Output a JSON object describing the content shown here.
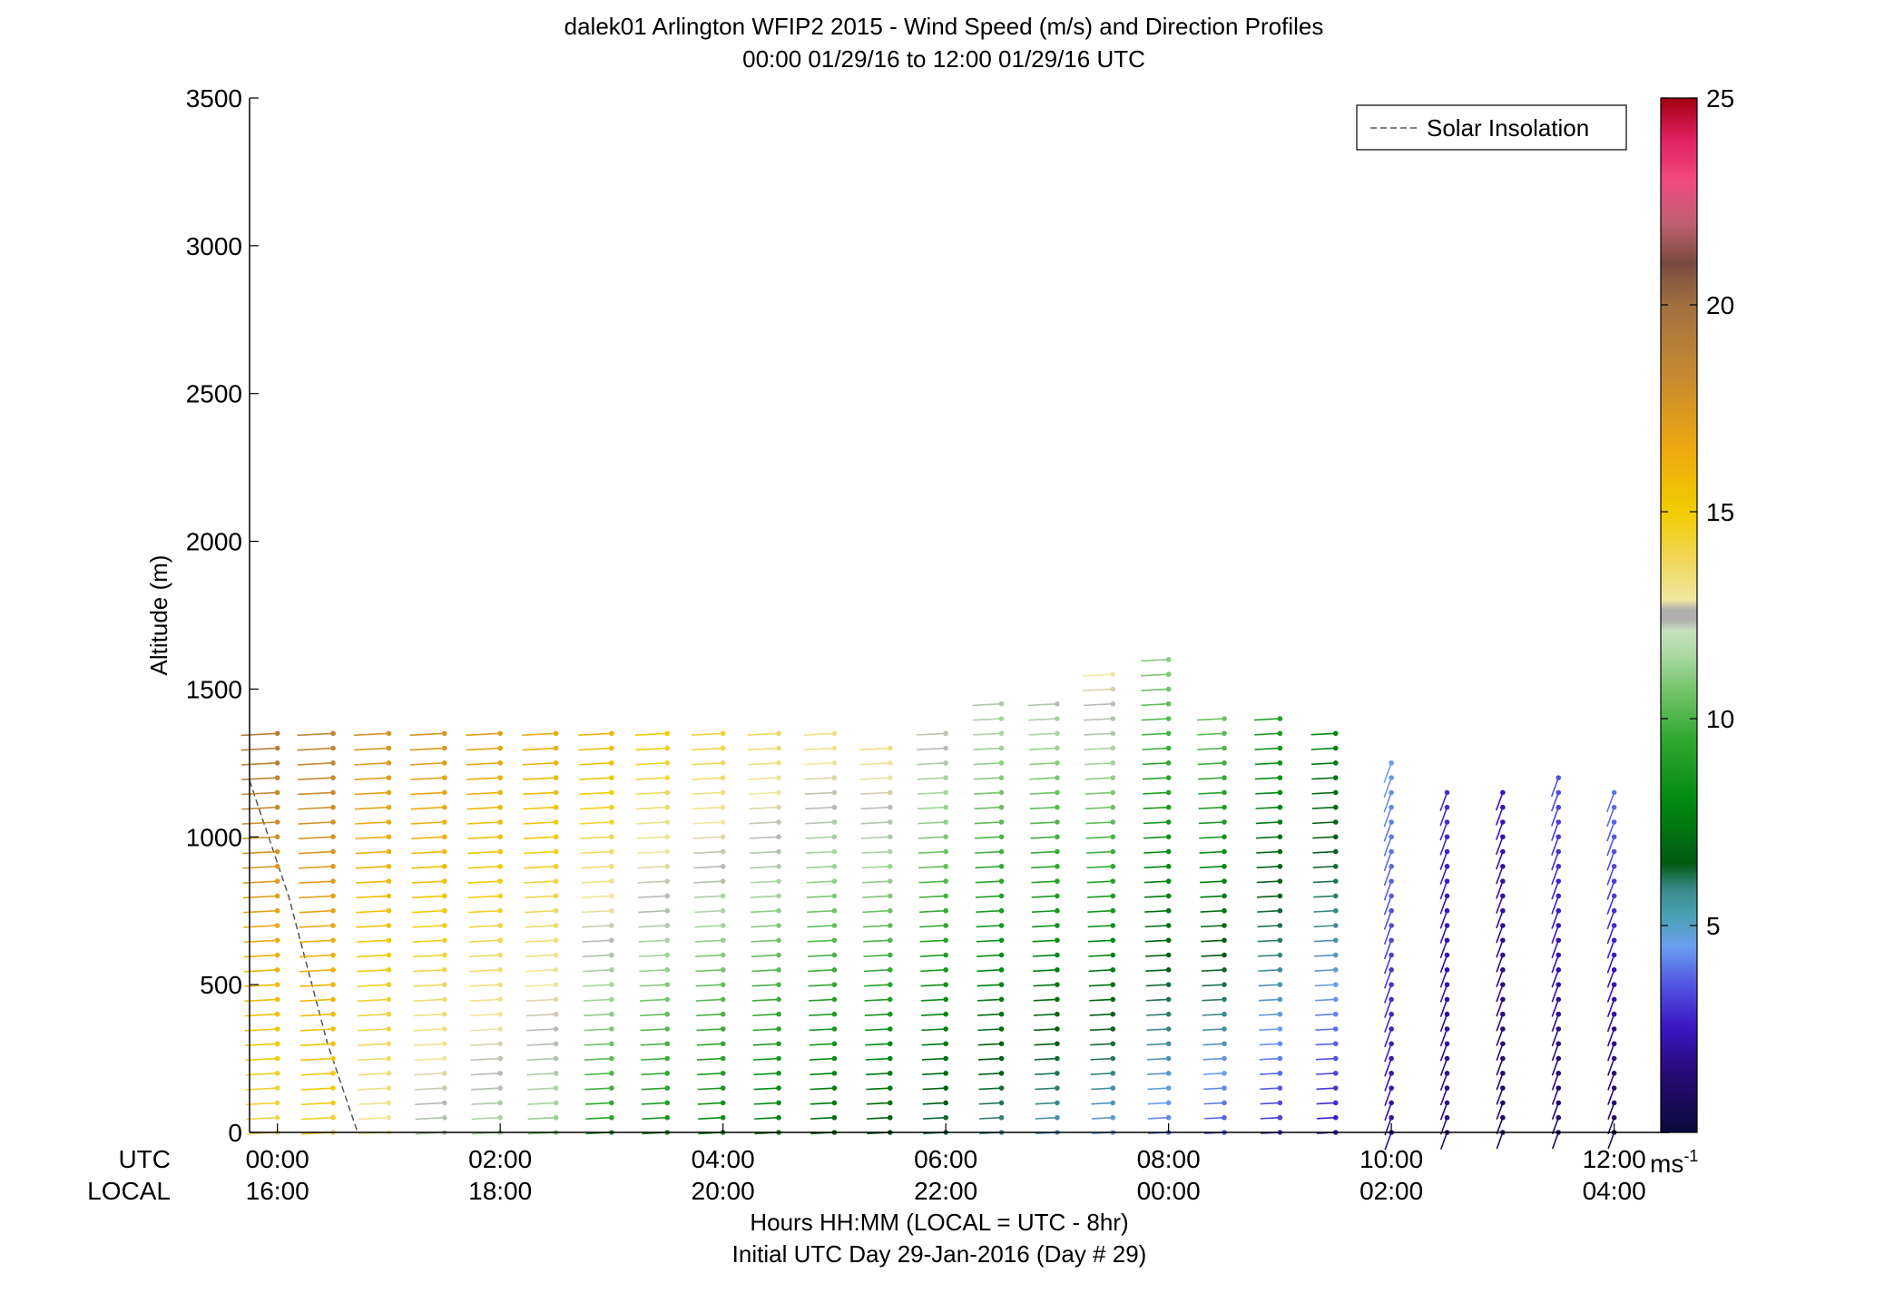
{
  "chart_data": {
    "type": "wind-barb-profile",
    "title": "dalek01 Arlington WFIP2 2015 - Wind Speed (m/s) and Direction Profiles",
    "subtitle": "00:00 01/29/16 to 12:00 01/29/16  UTC",
    "ylabel": "Altitude (m)",
    "xlabel": "Hours HH:MM  (LOCAL = UTC - 8hr)",
    "xlabel2": "Initial UTC Day 29-Jan-2016 (Day # 29)",
    "ylim": [
      0,
      3500
    ],
    "xlim_hours": [
      -0.25,
      12.5
    ],
    "yticks": [
      0,
      500,
      1000,
      1500,
      2000,
      2500,
      3000,
      3500
    ],
    "yticklabels": [
      "0",
      "500",
      "1000",
      "1500",
      "2000",
      "2500",
      "3000",
      "3500"
    ],
    "xticks_hours": [
      0,
      2,
      4,
      6,
      8,
      10,
      12
    ],
    "utc_row_label": "UTC",
    "local_row_label": "LOCAL",
    "utc_ticklabels": [
      "00:00",
      "02:00",
      "04:00",
      "06:00",
      "08:00",
      "10:00",
      "12:00"
    ],
    "local_ticklabels": [
      "16:00",
      "18:00",
      "20:00",
      "22:00",
      "00:00",
      "02:00",
      "04:00"
    ],
    "legend": {
      "entries": [
        "Solar Insolation"
      ],
      "location": "top-right",
      "line_style": "dashed"
    },
    "colorbar": {
      "range": [
        0,
        25
      ],
      "ticks": [
        5,
        10,
        15,
        20,
        25
      ],
      "ticklabels": [
        "5",
        "10",
        "15",
        "20",
        "25"
      ],
      "unit_label": "ms",
      "unit_exponent": "-1"
    },
    "solar_insolation_line": [
      {
        "hour": -0.25,
        "alt": 1190
      },
      {
        "hour": 0.1,
        "alt": 800
      },
      {
        "hour": 0.45,
        "alt": 300
      },
      {
        "hour": 0.72,
        "alt": 0
      }
    ],
    "profiles": [
      {
        "hour": 0.0,
        "levels": [
          [
            0,
            200,
            14.0
          ],
          [
            1350,
            1350,
            19.0
          ]
        ]
      },
      {
        "hour": 0.5,
        "levels": [
          [
            0,
            250,
            14.5
          ],
          [
            1350,
            1350,
            18.5
          ]
        ]
      },
      {
        "hour": 1.0,
        "levels": [
          [
            0,
            150,
            13.0
          ],
          [
            1350,
            1350,
            17.5
          ]
        ]
      },
      {
        "hour": 1.5,
        "levels": [
          [
            0,
            100,
            12.0
          ],
          [
            1350,
            1350,
            17.5
          ]
        ]
      },
      {
        "hour": 2.0,
        "levels": [
          [
            0,
            50,
            11.5
          ],
          [
            1350,
            1350,
            17.0
          ]
        ]
      },
      {
        "hour": 2.5,
        "levels": [
          [
            0,
            0,
            11.0
          ],
          [
            1350,
            1350,
            16.5
          ]
        ]
      },
      {
        "hour": 3.0,
        "levels": [
          [
            0,
            0,
            9.0
          ],
          [
            1350,
            1350,
            16.0
          ]
        ]
      },
      {
        "hour": 3.5,
        "levels": [
          [
            0,
            0,
            8.5
          ],
          [
            1350,
            1350,
            15.0
          ]
        ]
      },
      {
        "hour": 4.0,
        "levels": [
          [
            0,
            0,
            8.0
          ],
          [
            1350,
            1350,
            14.5
          ]
        ]
      },
      {
        "hour": 4.5,
        "levels": [
          [
            0,
            0,
            7.5
          ],
          [
            1350,
            1350,
            14.0
          ]
        ]
      },
      {
        "hour": 5.0,
        "levels": [
          [
            0,
            0,
            7.0
          ],
          [
            1350,
            1350,
            13.5
          ]
        ]
      },
      {
        "hour": 5.5,
        "levels": [
          [
            0,
            0,
            6.5
          ],
          [
            1300,
            1300,
            13.5
          ]
        ]
      },
      {
        "hour": 6.0,
        "levels": [
          [
            0,
            0,
            6.0
          ],
          [
            1350,
            1350,
            12.5
          ]
        ]
      },
      {
        "hour": 6.5,
        "levels": [
          [
            0,
            0,
            5.5
          ],
          [
            1450,
            1450,
            12.0
          ]
        ]
      },
      {
        "hour": 7.0,
        "levels": [
          [
            0,
            0,
            5.0
          ],
          [
            1450,
            1450,
            12.0
          ]
        ]
      },
      {
        "hour": 7.5,
        "levels": [
          [
            0,
            0,
            4.5
          ],
          [
            1550,
            1550,
            13.0
          ]
        ]
      },
      {
        "hour": 8.0,
        "levels": [
          [
            0,
            0,
            4.0
          ],
          [
            1600,
            1600,
            11.0
          ]
        ]
      },
      {
        "hour": 8.5,
        "levels": [
          [
            0,
            0,
            3.5
          ],
          [
            1400,
            1400,
            10.5
          ]
        ]
      },
      {
        "hour": 9.0,
        "levels": [
          [
            0,
            0,
            3.0
          ],
          [
            1400,
            1400,
            9.0
          ]
        ]
      },
      {
        "hour": 9.5,
        "levels": [
          [
            0,
            0,
            2.5
          ],
          [
            1350,
            1350,
            8.0
          ]
        ]
      },
      {
        "hour": 10.0,
        "levels": [
          [
            0,
            0,
            2.0
          ],
          [
            1250,
            1250,
            4.5
          ]
        ]
      },
      {
        "hour": 10.5,
        "levels": [
          [
            0,
            0,
            1.5
          ],
          [
            1150,
            1150,
            3.0
          ]
        ]
      },
      {
        "hour": 11.0,
        "levels": [
          [
            0,
            0,
            1.0
          ],
          [
            1150,
            1150,
            2.5
          ]
        ]
      },
      {
        "hour": 11.5,
        "levels": [
          [
            0,
            0,
            1.0
          ],
          [
            1200,
            1200,
            3.5
          ]
        ]
      },
      {
        "hour": 12.0,
        "levels": [
          [
            0,
            0,
            1.0
          ],
          [
            1150,
            1150,
            4.0
          ]
        ]
      }
    ]
  }
}
